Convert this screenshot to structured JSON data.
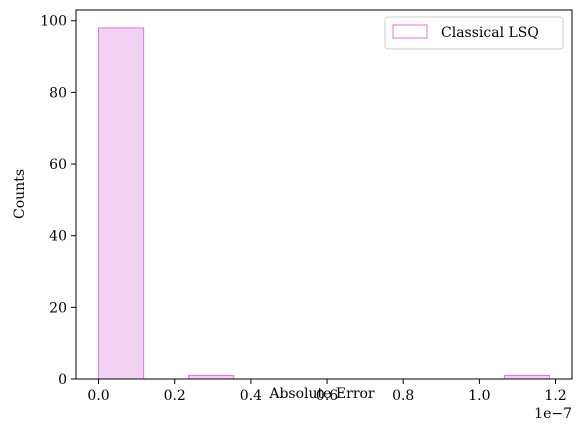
{
  "chart_data": {
    "type": "histogram",
    "xlabel": "Absolute Error",
    "ylabel": "Counts",
    "x_offset_label": "1e−7",
    "xlim": [
      -0.0592,
      1.2432
    ],
    "ylim": [
      0,
      103
    ],
    "x_ticks": [
      0.0,
      0.2,
      0.4,
      0.6,
      0.8,
      1.0,
      1.2
    ],
    "x_tick_labels": [
      "0.0",
      "0.2",
      "0.4",
      "0.6",
      "0.8",
      "1.0",
      "1.2"
    ],
    "y_ticks": [
      0,
      20,
      40,
      60,
      80,
      100
    ],
    "y_tick_labels": [
      "0",
      "20",
      "40",
      "60",
      "80",
      "100"
    ],
    "grid": false,
    "legend_position": "top-right",
    "series": [
      {
        "name": "Classical LSQ",
        "edge_color": "#e86be8",
        "fill_color": "#f2d2f2",
        "bin_edges": [
          0.0,
          0.1184,
          0.2368,
          0.3552,
          0.4736,
          0.592,
          0.7104,
          0.8288,
          0.9472,
          1.0656,
          1.184
        ],
        "counts": [
          98,
          0,
          1,
          0,
          0,
          0,
          0,
          0,
          0,
          1
        ]
      }
    ]
  }
}
